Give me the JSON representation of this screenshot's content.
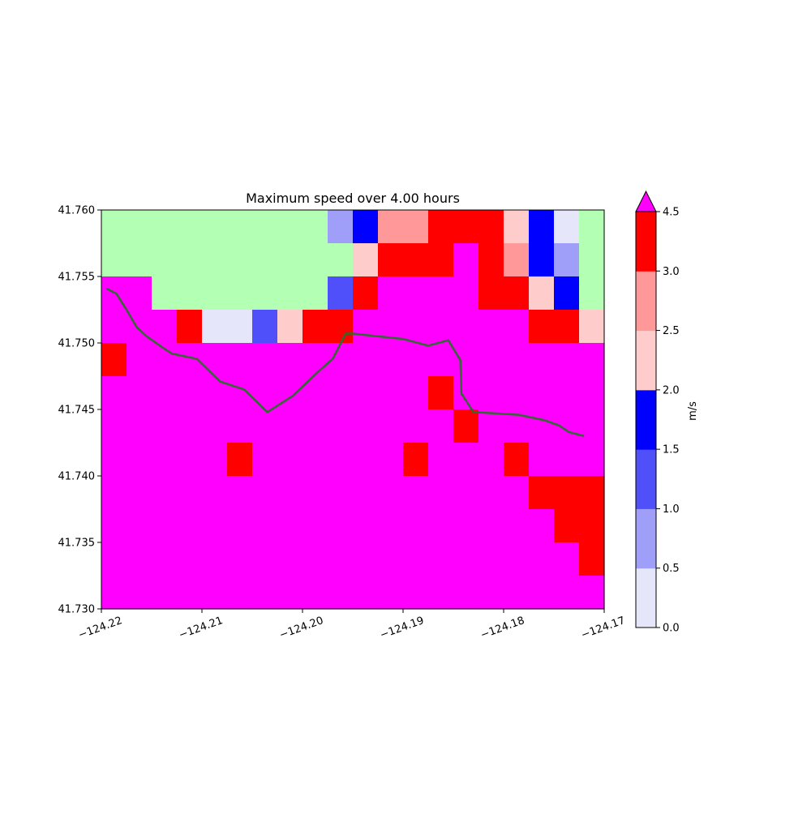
{
  "chart_data": {
    "type": "heatmap",
    "title": "Maximum speed over 4.00 hours",
    "x_tick_labels": [
      "−124.22",
      "−124.21",
      "−124.20",
      "−124.19",
      "−124.18",
      "−124.17"
    ],
    "x_ticks": [
      -124.22,
      -124.21,
      -124.2,
      -124.19,
      -124.18,
      -124.17
    ],
    "y_tick_labels": [
      "41.730",
      "41.735",
      "41.740",
      "41.745",
      "41.750",
      "41.755",
      "41.760"
    ],
    "y_ticks": [
      41.73,
      41.735,
      41.74,
      41.745,
      41.75,
      41.755,
      41.76
    ],
    "xlim": [
      -124.22,
      -124.17
    ],
    "ylim": [
      41.73,
      41.76
    ],
    "grid": {
      "cols": 20,
      "rows": 12,
      "land_code": -1,
      "values_top_to_bottom": [
        [
          -1,
          -1,
          -1,
          -1,
          -1,
          -1,
          -1,
          -1,
          -1,
          0.75,
          1.75,
          2.75,
          2.75,
          3.75,
          3.75,
          3.75,
          2.25,
          1.75,
          0.25,
          -1
        ],
        [
          -1,
          -1,
          -1,
          -1,
          -1,
          -1,
          -1,
          -1,
          -1,
          -1,
          2.25,
          3.75,
          3.75,
          3.75,
          5,
          3.75,
          2.75,
          1.75,
          0.75,
          -1
        ],
        [
          5,
          5,
          -1,
          -1,
          -1,
          -1,
          -1,
          -1,
          -1,
          1.25,
          3.75,
          5,
          5,
          5,
          5,
          3.75,
          3.75,
          2.25,
          1.75,
          -1
        ],
        [
          5,
          5,
          5,
          3.75,
          0.25,
          0.25,
          1.25,
          2.25,
          3.75,
          3.75,
          5,
          5,
          5,
          5,
          5,
          5,
          5,
          3.75,
          3.75,
          2.25
        ],
        [
          3.75,
          5,
          5,
          5,
          5,
          5,
          5,
          5,
          5,
          5,
          5,
          5,
          5,
          5,
          5,
          5,
          5,
          5,
          5,
          5
        ],
        [
          5,
          5,
          5,
          5,
          5,
          5,
          5,
          5,
          5,
          5,
          5,
          5,
          5,
          3.75,
          5,
          5,
          5,
          5,
          5,
          5
        ],
        [
          5,
          5,
          5,
          5,
          5,
          5,
          5,
          5,
          5,
          5,
          5,
          5,
          5,
          5,
          3.75,
          5,
          5,
          5,
          5,
          5
        ],
        [
          5,
          5,
          5,
          5,
          5,
          3.75,
          5,
          5,
          5,
          5,
          5,
          5,
          3.75,
          5,
          5,
          5,
          3.75,
          5,
          5,
          5
        ],
        [
          5,
          5,
          5,
          5,
          5,
          5,
          5,
          5,
          5,
          5,
          5,
          5,
          5,
          5,
          5,
          5,
          5,
          3.75,
          3.75,
          3.75
        ],
        [
          5,
          5,
          5,
          5,
          5,
          5,
          5,
          5,
          5,
          5,
          5,
          5,
          5,
          5,
          5,
          5,
          5,
          5,
          3.75,
          3.75
        ],
        [
          5,
          5,
          5,
          5,
          5,
          5,
          5,
          5,
          5,
          5,
          5,
          5,
          5,
          5,
          5,
          5,
          5,
          5,
          5,
          3.75
        ],
        [
          5,
          5,
          5,
          5,
          5,
          5,
          5,
          5,
          5,
          5,
          5,
          5,
          5,
          5,
          5,
          5,
          5,
          5,
          5,
          5
        ]
      ]
    },
    "coastline": [
      [
        -124.2195,
        41.7541
      ],
      [
        -124.2185,
        41.7537
      ],
      [
        -124.2175,
        41.7525
      ],
      [
        -124.2165,
        41.7512
      ],
      [
        -124.2155,
        41.7505
      ],
      [
        -124.214,
        41.7497
      ],
      [
        -124.213,
        41.7492
      ],
      [
        -124.2105,
        41.7488
      ],
      [
        -124.2082,
        41.7471
      ],
      [
        -124.2058,
        41.7465
      ],
      [
        -124.2035,
        41.7448
      ],
      [
        -124.201,
        41.746
      ],
      [
        -124.1985,
        41.7478
      ],
      [
        -124.197,
        41.7488
      ],
      [
        -124.1957,
        41.7507
      ],
      [
        -124.195,
        41.7507
      ],
      [
        -124.19,
        41.7503
      ],
      [
        -124.1875,
        41.7498
      ],
      [
        -124.1855,
        41.7502
      ],
      [
        -124.1843,
        41.7487
      ],
      [
        -124.1842,
        41.7462
      ],
      [
        -124.183,
        41.7448
      ],
      [
        -124.1785,
        41.7446
      ],
      [
        -124.176,
        41.7442
      ],
      [
        -124.1745,
        41.7438
      ],
      [
        -124.1735,
        41.7433
      ],
      [
        -124.172,
        41.743
      ]
    ],
    "colorbar": {
      "label": "m/s",
      "boundaries": [
        0.0,
        0.5,
        1.0,
        1.5,
        2.0,
        2.5,
        3.0,
        4.5
      ],
      "tick_labels": [
        "0.0",
        "0.5",
        "1.0",
        "1.5",
        "2.0",
        "2.5",
        "3.0",
        "4.5"
      ],
      "colors": [
        "#e6e6fa",
        "#9f9ffa",
        "#5050fa",
        "#0000ff",
        "#ffcccc",
        "#ff9999",
        "#ff0000"
      ],
      "extend_color": "#ff00ff",
      "extend": "max"
    },
    "land_color": "#b3ffb3",
    "coastline_color": "#2f6b2f"
  }
}
